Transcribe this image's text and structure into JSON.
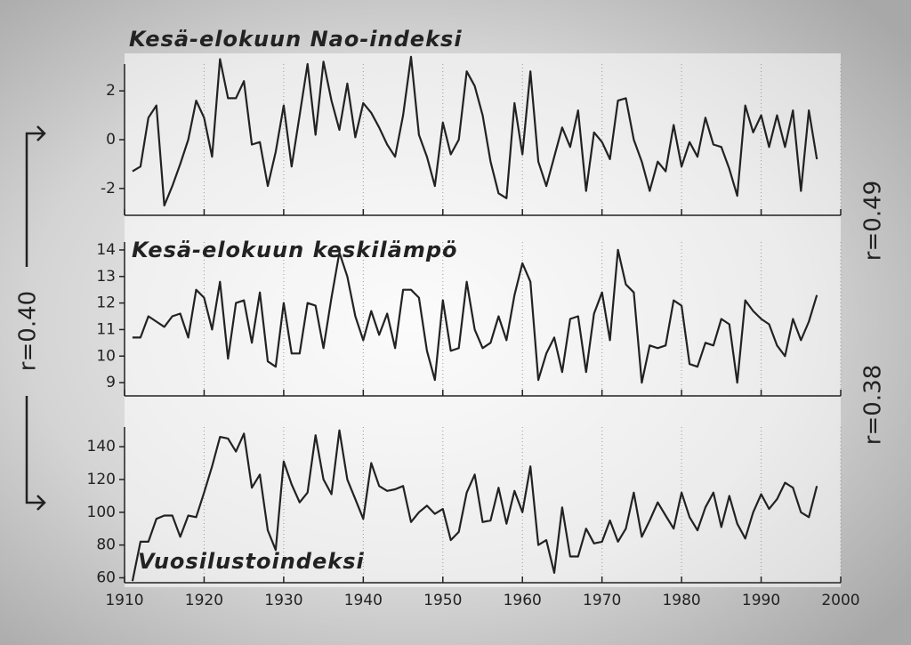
{
  "chart_data": [
    {
      "type": "line",
      "title": "Kesä-elokuun Nao-indeksi",
      "color": "#222222",
      "grid": true,
      "xtick_labels": false,
      "xlim": [
        1910,
        2000
      ],
      "xticks": [
        1910,
        1920,
        1930,
        1940,
        1950,
        1960,
        1970,
        1980,
        1990,
        2000
      ],
      "ylim": [
        -3.1,
        3.1
      ],
      "yticks": [
        -2,
        0,
        2
      ],
      "x": [
        1911,
        1912,
        1913,
        1914,
        1915,
        1916,
        1917,
        1918,
        1919,
        1920,
        1921,
        1922,
        1923,
        1924,
        1925,
        1926,
        1927,
        1928,
        1929,
        1930,
        1931,
        1932,
        1933,
        1934,
        1935,
        1936,
        1937,
        1938,
        1939,
        1940,
        1941,
        1942,
        1943,
        1944,
        1945,
        1946,
        1947,
        1948,
        1949,
        1950,
        1951,
        1952,
        1953,
        1954,
        1955,
        1956,
        1957,
        1958,
        1959,
        1960,
        1961,
        1962,
        1963,
        1964,
        1965,
        1966,
        1967,
        1968,
        1969,
        1970,
        1971,
        1972,
        1973,
        1974,
        1975,
        1976,
        1977,
        1978,
        1979,
        1980,
        1981,
        1982,
        1983,
        1984,
        1985,
        1986,
        1987,
        1988,
        1989,
        1990,
        1991,
        1992,
        1993,
        1994,
        1995,
        1996,
        1997
      ],
      "values": [
        -1.3,
        -1.1,
        0.9,
        1.4,
        -2.7,
        -1.9,
        -1.0,
        0.0,
        1.6,
        0.9,
        -0.7,
        3.3,
        1.7,
        1.7,
        2.4,
        -0.2,
        -0.1,
        -1.9,
        -0.5,
        1.4,
        -1.1,
        1.0,
        3.1,
        0.2,
        3.2,
        1.6,
        0.4,
        2.3,
        0.1,
        1.5,
        1.1,
        0.5,
        -0.2,
        -0.7,
        1.0,
        3.4,
        0.2,
        -0.7,
        -1.9,
        0.7,
        -0.6,
        0.0,
        2.8,
        2.2,
        1.0,
        -0.9,
        -2.2,
        -2.4,
        1.5,
        -0.6,
        2.8,
        -0.9,
        -1.9,
        -0.7,
        0.5,
        -0.3,
        1.2,
        -2.1,
        0.3,
        -0.1,
        -0.8,
        1.6,
        1.7,
        0.0,
        -0.9,
        -2.1,
        -0.9,
        -1.3,
        0.6,
        -1.1,
        -0.1,
        -0.7,
        0.9,
        -0.2,
        -0.3,
        -1.2,
        -2.3,
        1.4,
        0.3,
        1.0,
        -0.3,
        1.0,
        -0.3,
        1.2,
        -2.1,
        1.2,
        -0.8
      ]
    },
    {
      "type": "line",
      "title": "Kesä-elokuun keskilämpö",
      "color": "#222222",
      "grid": true,
      "xtick_labels": false,
      "xlim": [
        1910,
        2000
      ],
      "xticks": [
        1910,
        1920,
        1930,
        1940,
        1950,
        1960,
        1970,
        1980,
        1990,
        2000
      ],
      "ylim": [
        8.5,
        14.3
      ],
      "yticks": [
        9,
        10,
        11,
        12,
        13,
        14
      ],
      "x": [
        1911,
        1912,
        1913,
        1914,
        1915,
        1916,
        1917,
        1918,
        1919,
        1920,
        1921,
        1922,
        1923,
        1924,
        1925,
        1926,
        1927,
        1928,
        1929,
        1930,
        1931,
        1932,
        1933,
        1934,
        1935,
        1936,
        1937,
        1938,
        1939,
        1940,
        1941,
        1942,
        1943,
        1944,
        1945,
        1946,
        1947,
        1948,
        1949,
        1950,
        1951,
        1952,
        1953,
        1954,
        1955,
        1956,
        1957,
        1958,
        1959,
        1960,
        1961,
        1962,
        1963,
        1964,
        1965,
        1966,
        1967,
        1968,
        1969,
        1970,
        1971,
        1972,
        1973,
        1974,
        1975,
        1976,
        1977,
        1978,
        1979,
        1980,
        1981,
        1982,
        1983,
        1984,
        1985,
        1986,
        1987,
        1988,
        1989,
        1990,
        1991,
        1992,
        1993,
        1994,
        1995,
        1996,
        1997
      ],
      "values": [
        10.7,
        10.7,
        11.5,
        11.3,
        11.1,
        11.5,
        11.6,
        10.7,
        12.5,
        12.2,
        11.0,
        12.8,
        9.9,
        12.0,
        12.1,
        10.5,
        12.4,
        9.8,
        9.6,
        12.0,
        10.1,
        10.1,
        12.0,
        11.9,
        10.3,
        12.2,
        13.9,
        13.0,
        11.5,
        10.6,
        11.7,
        10.8,
        11.6,
        10.3,
        12.5,
        12.5,
        12.2,
        10.2,
        9.1,
        12.1,
        10.2,
        10.3,
        12.8,
        11.0,
        10.3,
        10.5,
        11.5,
        10.6,
        12.3,
        13.5,
        12.8,
        9.1,
        10.1,
        10.7,
        9.4,
        11.4,
        11.5,
        9.4,
        11.6,
        12.4,
        10.6,
        14.0,
        12.7,
        12.4,
        9.0,
        10.4,
        10.3,
        10.4,
        12.1,
        11.9,
        9.7,
        9.6,
        10.5,
        10.4,
        11.4,
        11.2,
        9.0,
        12.1,
        11.7,
        11.4,
        11.2,
        10.4,
        10.0,
        11.4,
        10.6,
        11.3,
        12.3
      ]
    },
    {
      "type": "line",
      "title": "Vuosilustoindeksi",
      "color": "#222222",
      "grid": true,
      "xtick_labels": true,
      "xlim": [
        1910,
        2000
      ],
      "xticks": [
        1910,
        1920,
        1930,
        1940,
        1950,
        1960,
        1970,
        1980,
        1990,
        2000
      ],
      "ylim": [
        57,
        152
      ],
      "yticks": [
        60,
        80,
        100,
        120,
        140
      ],
      "x": [
        1911,
        1912,
        1913,
        1914,
        1915,
        1916,
        1917,
        1918,
        1919,
        1920,
        1921,
        1922,
        1923,
        1924,
        1925,
        1926,
        1927,
        1928,
        1929,
        1930,
        1931,
        1932,
        1933,
        1934,
        1935,
        1936,
        1937,
        1938,
        1939,
        1940,
        1941,
        1942,
        1943,
        1944,
        1945,
        1946,
        1947,
        1948,
        1949,
        1950,
        1951,
        1952,
        1953,
        1954,
        1955,
        1956,
        1957,
        1958,
        1959,
        1960,
        1961,
        1962,
        1963,
        1964,
        1965,
        1966,
        1967,
        1968,
        1969,
        1970,
        1971,
        1972,
        1973,
        1974,
        1975,
        1976,
        1977,
        1978,
        1979,
        1980,
        1981,
        1982,
        1983,
        1984,
        1985,
        1986,
        1987,
        1988,
        1989,
        1990,
        1991,
        1992,
        1993,
        1994,
        1995,
        1996,
        1997
      ],
      "values": [
        58,
        82,
        82,
        96,
        98,
        98,
        85,
        98,
        97,
        112,
        128,
        146,
        145,
        137,
        148,
        115,
        123,
        89,
        77,
        131,
        117,
        106,
        112,
        147,
        120,
        111,
        150,
        120,
        108,
        96,
        130,
        116,
        113,
        114,
        116,
        94,
        100,
        104,
        99,
        102,
        83,
        88,
        112,
        123,
        94,
        95,
        115,
        93,
        113,
        100,
        128,
        80,
        83,
        63,
        103,
        73,
        73,
        90,
        81,
        82,
        95,
        82,
        90,
        112,
        85,
        95,
        106,
        98,
        90,
        112,
        97,
        89,
        103,
        112,
        91,
        110,
        93,
        84,
        100,
        111,
        102,
        108,
        118,
        115,
        100,
        97,
        116
      ]
    }
  ],
  "correlations": {
    "left": "r=0.40",
    "right_top": "r=0.49",
    "right_bottom": "r=0.38"
  }
}
